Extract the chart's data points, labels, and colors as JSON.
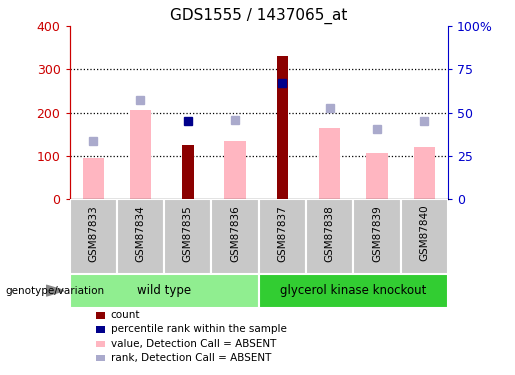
{
  "title": "GDS1555 / 1437065_at",
  "samples": [
    "GSM87833",
    "GSM87834",
    "GSM87835",
    "GSM87836",
    "GSM87837",
    "GSM87838",
    "GSM87839",
    "GSM87840"
  ],
  "count_values": [
    null,
    null,
    125,
    null,
    330,
    null,
    null,
    null
  ],
  "rank_values": [
    null,
    null,
    180,
    null,
    268,
    null,
    null,
    null
  ],
  "pink_values": [
    95,
    205,
    null,
    133,
    null,
    163,
    107,
    120
  ],
  "blue_marker_values": [
    135,
    228,
    null,
    182,
    null,
    210,
    162,
    180
  ],
  "ylim_left": [
    0,
    400
  ],
  "ylim_right": [
    0,
    100
  ],
  "yticks_left": [
    0,
    100,
    200,
    300,
    400
  ],
  "ytick_labels_left": [
    "0",
    "100",
    "200",
    "300",
    "400"
  ],
  "yticks_right": [
    0,
    25,
    50,
    75,
    100
  ],
  "ytick_labels_right": [
    "0",
    "25",
    "50",
    "75",
    "100%"
  ],
  "groups": [
    {
      "label": "wild type",
      "samples": [
        0,
        1,
        2,
        3
      ],
      "color": "#90EE90"
    },
    {
      "label": "glycerol kinase knockout",
      "samples": [
        4,
        5,
        6,
        7
      ],
      "color": "#32CD32"
    }
  ],
  "legend_items": [
    {
      "label": "count",
      "color": "#8B0000"
    },
    {
      "label": "percentile rank within the sample",
      "color": "#00008B"
    },
    {
      "label": "value, Detection Call = ABSENT",
      "color": "#FFB6C1"
    },
    {
      "label": "rank, Detection Call = ABSENT",
      "color": "#AAAACC"
    }
  ],
  "count_color": "#8B0000",
  "rank_color": "#00008B",
  "pink_color": "#FFB6C1",
  "blue_marker_color": "#AAAACC",
  "bg_color": "#FFFFFF",
  "left_axis_color": "#CC0000",
  "right_axis_color": "#0000CC",
  "genotype_label": "genotype/variation"
}
